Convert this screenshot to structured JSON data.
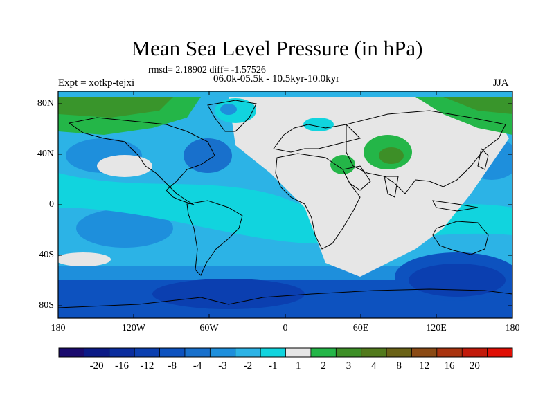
{
  "title": "Mean Sea Level Pressure (in hPa)",
  "stats": "rmsd= 2.18902 diff= -1.57526",
  "period": "06.0k-05.5k - 10.5kyr-10.0kyr",
  "experiment": "Expt = xotkp-tejxi",
  "season": "JJA",
  "lat_labels": [
    "80N",
    "40N",
    "0",
    "40S",
    "80S"
  ],
  "lon_labels": [
    "180",
    "120W",
    "60W",
    "0",
    "60E",
    "120E",
    "180"
  ],
  "colorbar": {
    "labels": [
      "-20",
      "-16",
      "-12",
      "-8",
      "-4",
      "-3",
      "-2",
      "-1",
      "1",
      "2",
      "3",
      "4",
      "8",
      "12",
      "16",
      "20"
    ],
    "colors": [
      "#1a0a6e",
      "#0b1a86",
      "#0a2d9e",
      "#0b3fb0",
      "#0d52bf",
      "#1870cc",
      "#1e8fdc",
      "#2cb3e6",
      "#11d4de",
      "#e6e6e6",
      "#24b648",
      "#3d8f27",
      "#527a1c",
      "#6a6216",
      "#8a4a14",
      "#a9330f",
      "#c21a0a",
      "#e00f05"
    ]
  }
}
